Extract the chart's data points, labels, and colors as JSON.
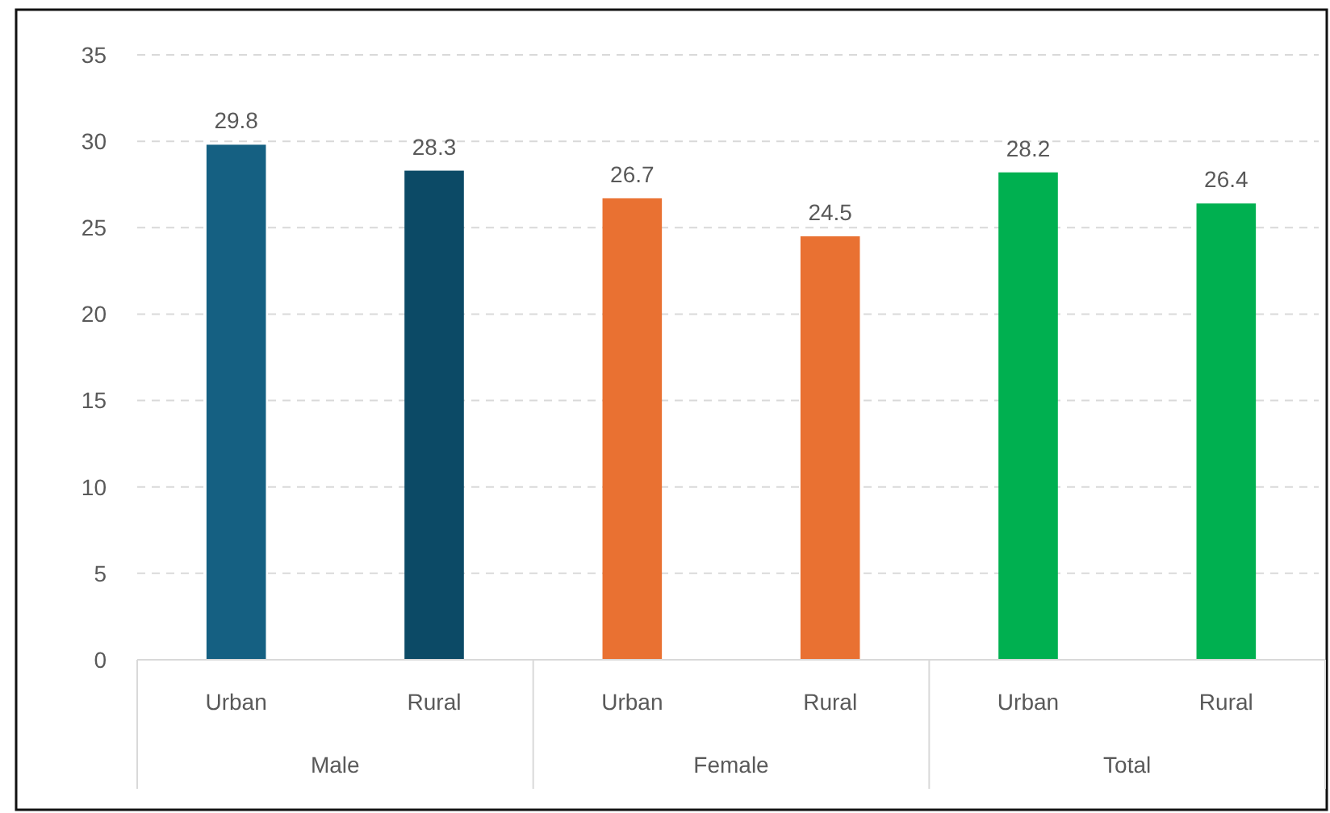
{
  "chart_data": {
    "type": "bar",
    "categories": [
      "Urban",
      "Rural",
      "Urban",
      "Rural",
      "Urban",
      "Rural"
    ],
    "values": [
      29.8,
      28.3,
      26.7,
      24.5,
      28.2,
      26.4
    ],
    "colors": [
      "#156082",
      "#0c4a66",
      "#e97132",
      "#e97132",
      "#00b050",
      "#00b050"
    ],
    "annotations": [
      "Male",
      "Female",
      "Total"
    ],
    "ylim": [
      0,
      35
    ],
    "yticks": [
      0,
      5,
      10,
      15,
      20,
      25,
      30,
      35
    ],
    "grid": "y",
    "data_labels": true
  }
}
